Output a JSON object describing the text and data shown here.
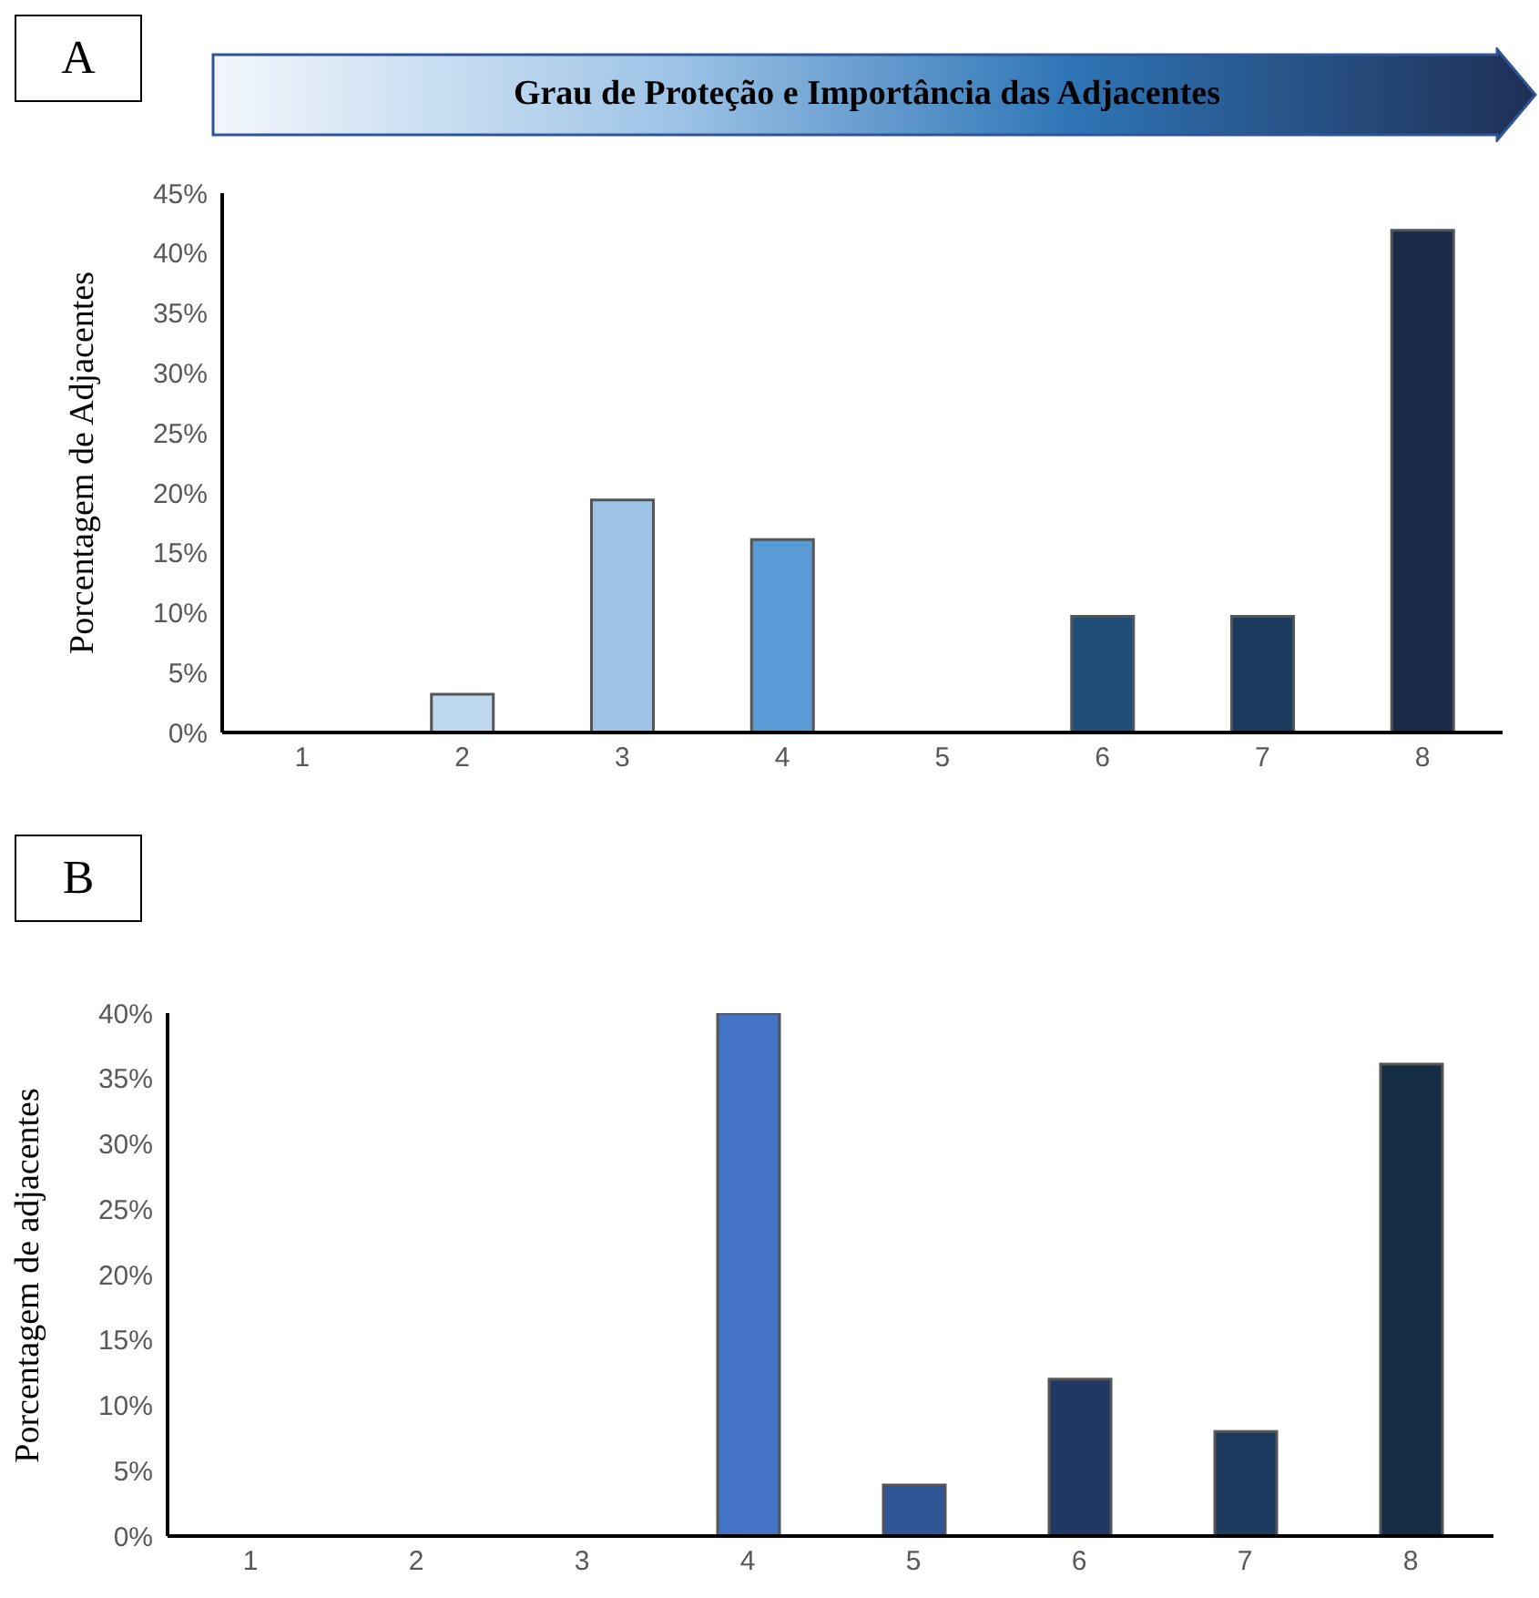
{
  "chart_data": [
    {
      "type": "bar",
      "title": "A",
      "subtitle": "Grau de Proteção e Importância das Adjacentes",
      "ylabel": "Porcentagem de Adjacentes",
      "categories": [
        "1",
        "2",
        "3",
        "4",
        "5",
        "6",
        "7",
        "8"
      ],
      "values": [
        0,
        3.2,
        19.4,
        16.1,
        0,
        9.7,
        9.7,
        41.9
      ],
      "colors": [
        "#a6adb4",
        "#bdd7ee",
        "#9dc3e6",
        "#5b9bd5",
        "#1f4e79",
        "#1f4e79",
        "#1b3a5e",
        "#1b2a4a"
      ],
      "ylim": [
        0,
        45
      ],
      "yticks": [
        {
          "value": 0,
          "label": "0%"
        },
        {
          "value": 5,
          "label": "5%"
        },
        {
          "value": 10,
          "label": "10%"
        },
        {
          "value": 15,
          "label": "15%"
        },
        {
          "value": 20,
          "label": "20%"
        },
        {
          "value": 25,
          "label": "25%"
        },
        {
          "value": 30,
          "label": "30%"
        },
        {
          "value": 35,
          "label": "35%"
        },
        {
          "value": 40,
          "label": "40%"
        },
        {
          "value": 45,
          "label": "45%"
        }
      ]
    },
    {
      "type": "bar",
      "title": "B",
      "ylabel": "Porcentagem de adjacentes",
      "categories": [
        "1",
        "2",
        "3",
        "4",
        "5",
        "6",
        "7",
        "8"
      ],
      "values": [
        0,
        0,
        0,
        40,
        3.9,
        12,
        8,
        36.1
      ],
      "colors": [
        "#a5aeb4",
        "#8497b0",
        "#6f83a6",
        "#4472c4",
        "#2f5597",
        "#203864",
        "#1b3a5e",
        "#152d45"
      ],
      "ylim": [
        0,
        40
      ],
      "yticks": [
        {
          "value": 0,
          "label": "0%"
        },
        {
          "value": 5,
          "label": "5%"
        },
        {
          "value": 10,
          "label": "10%"
        },
        {
          "value": 15,
          "label": "15%"
        },
        {
          "value": 20,
          "label": "20%"
        },
        {
          "value": 25,
          "label": "25%"
        },
        {
          "value": 30,
          "label": "30%"
        },
        {
          "value": 35,
          "label": "35%"
        },
        {
          "value": 40,
          "label": "40%"
        }
      ]
    }
  ]
}
